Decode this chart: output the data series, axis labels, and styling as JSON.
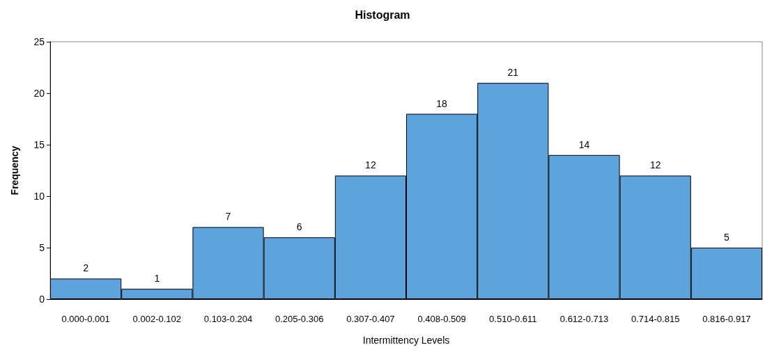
{
  "chart_data": {
    "type": "bar",
    "title": "Histogram",
    "xlabel": "Intermittency Levels",
    "ylabel": "Frequency",
    "categories": [
      "0.000-0.001",
      "0.002-0.102",
      "0.103-0.204",
      "0.205-0.306",
      "0.307-0.407",
      "0.408-0.509",
      "0.510-0.611",
      "0.612-0.713",
      "0.714-0.815",
      "0.816-0.917"
    ],
    "values": [
      2,
      1,
      7,
      6,
      12,
      18,
      21,
      14,
      12,
      5
    ],
    "color": "#5fa3dc",
    "ylim": [
      0,
      25
    ],
    "yticks": [
      0,
      5,
      10,
      15,
      20,
      25
    ],
    "grid": false,
    "data_labels": true
  }
}
